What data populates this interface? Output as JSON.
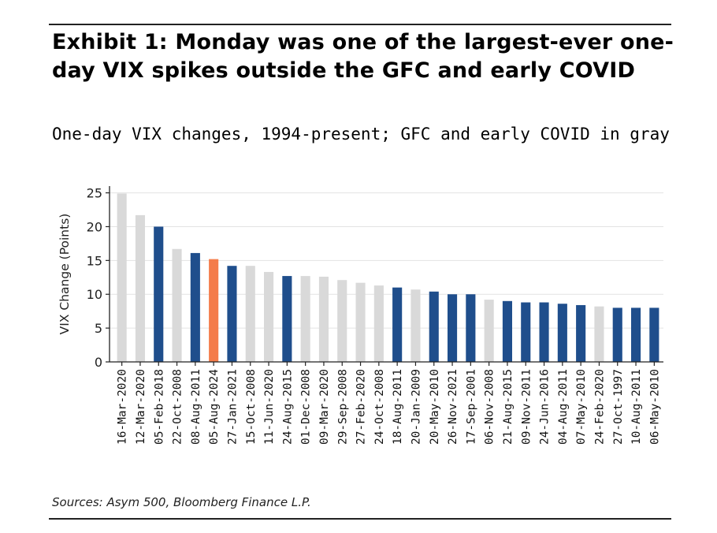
{
  "title": "Exhibit 1: Monday was one of the largest-ever one-day VIX spikes outside the GFC and early COVID",
  "subtitle": "One-day VIX changes, 1994-present; GFC and early COVID in gray",
  "sources": "Sources: Asym 500, Bloomberg Finance L.P.",
  "colors": {
    "gray": "#d9d9d9",
    "blue": "#1f4e8c",
    "orange": "#f47c4a",
    "grid": "#e3e3e3",
    "axis": "#222222"
  },
  "chart_data": {
    "type": "bar",
    "title": "Exhibit 1: Monday was one of the largest-ever one-day VIX spikes outside the GFC and early COVID",
    "xlabel": "",
    "ylabel": "VIX Change (Points)",
    "ylim": [
      0,
      26
    ],
    "yticks": [
      0,
      5,
      10,
      15,
      20,
      25
    ],
    "grid": true,
    "categories": [
      "16-Mar-2020",
      "12-Mar-2020",
      "05-Feb-2018",
      "22-Oct-2008",
      "08-Aug-2011",
      "05-Aug-2024",
      "27-Jan-2021",
      "15-Oct-2008",
      "11-Jun-2020",
      "24-Aug-2015",
      "01-Dec-2008",
      "09-Mar-2020",
      "29-Sep-2008",
      "27-Feb-2020",
      "24-Oct-2008",
      "18-Aug-2011",
      "20-Jan-2009",
      "20-May-2010",
      "26-Nov-2021",
      "17-Sep-2001",
      "06-Nov-2008",
      "21-Aug-2015",
      "09-Nov-2011",
      "24-Jun-2016",
      "04-Aug-2011",
      "07-May-2010",
      "24-Feb-2020",
      "27-Oct-1997",
      "10-Aug-2011",
      "06-May-2010"
    ],
    "values": [
      24.9,
      21.7,
      20.0,
      16.7,
      16.1,
      15.2,
      14.2,
      14.2,
      13.3,
      12.7,
      12.7,
      12.6,
      12.1,
      11.7,
      11.3,
      11.0,
      10.7,
      10.4,
      10.0,
      10.0,
      9.2,
      9.0,
      8.8,
      8.8,
      8.6,
      8.4,
      8.2,
      8.0,
      8.0,
      8.0
    ],
    "groups": [
      "gray",
      "gray",
      "blue",
      "gray",
      "blue",
      "orange",
      "blue",
      "gray",
      "gray",
      "blue",
      "gray",
      "gray",
      "gray",
      "gray",
      "gray",
      "blue",
      "gray",
      "blue",
      "blue",
      "blue",
      "gray",
      "blue",
      "blue",
      "blue",
      "blue",
      "blue",
      "gray",
      "blue",
      "blue",
      "blue"
    ]
  }
}
